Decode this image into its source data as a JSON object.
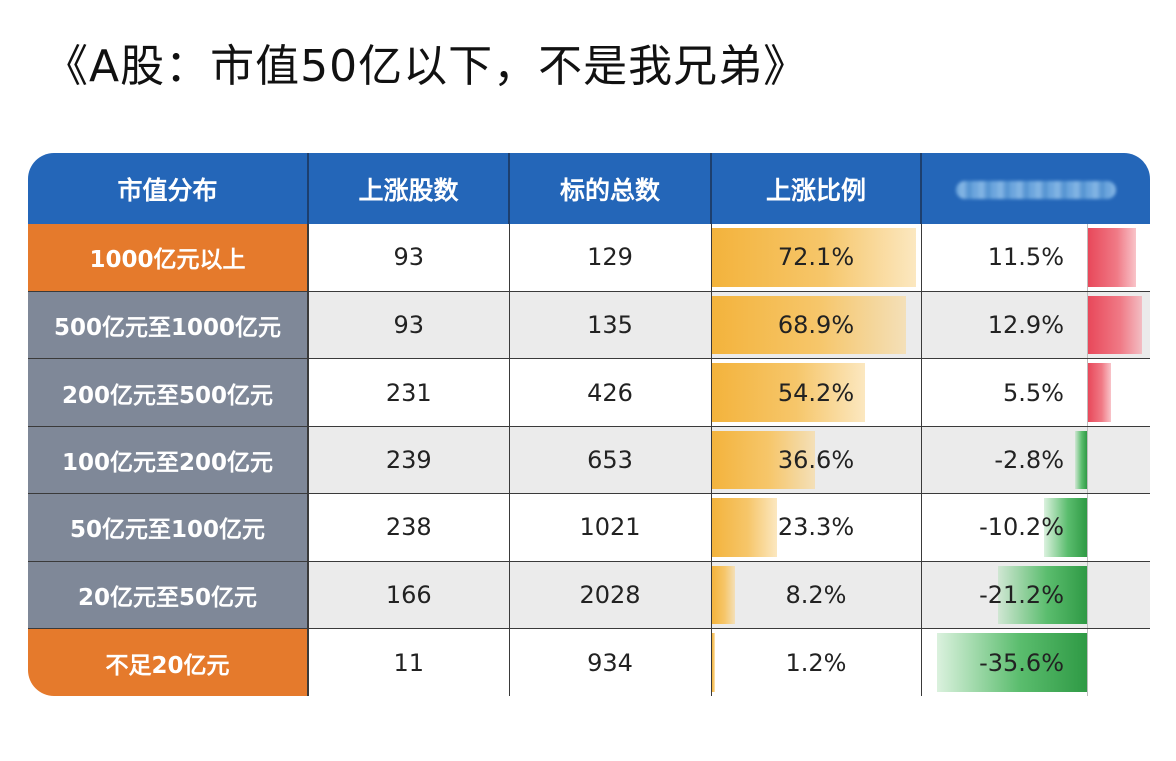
{
  "post": {
    "title": "《A股：市值50亿以下，不是我兄弟》"
  },
  "colors": {
    "header_bg": "#2466b8",
    "band_orange": "#e57a2c",
    "band_gray": "#7f8898",
    "ratio_bar": "#f3b33c",
    "up_bar": "#e8485a",
    "down_bar": "#2f9a45"
  },
  "chart_data": {
    "type": "table",
    "columns": [
      "市值分布",
      "上涨股数",
      "标的总数",
      "上涨比例",
      ""
    ],
    "rows": [
      {
        "band": "1000亿元以上",
        "up": "93",
        "total": "129",
        "ratio": "72.1%",
        "change": "11.5%",
        "band_style": "orange"
      },
      {
        "band": "500亿元至1000亿元",
        "up": "93",
        "total": "135",
        "ratio": "68.9%",
        "change": "12.9%",
        "band_style": "gray"
      },
      {
        "band": "200亿元至500亿元",
        "up": "231",
        "total": "426",
        "ratio": "54.2%",
        "change": "5.5%",
        "band_style": "gray"
      },
      {
        "band": "100亿元至200亿元",
        "up": "239",
        "total": "653",
        "ratio": "36.6%",
        "change": "-2.8%",
        "band_style": "gray"
      },
      {
        "band": "50亿元至100亿元",
        "up": "238",
        "total": "1021",
        "ratio": "23.3%",
        "change": "-10.2%",
        "band_style": "gray"
      },
      {
        "band": "20亿元至50亿元",
        "up": "166",
        "total": "2028",
        "ratio": "8.2%",
        "change": "-21.2%",
        "band_style": "gray"
      },
      {
        "band": "不足20亿元",
        "up": "11",
        "total": "934",
        "ratio": "1.2%",
        "change": "-35.6%",
        "band_style": "orange"
      }
    ],
    "ratio_values": [
      72.1,
      68.9,
      54.2,
      36.6,
      23.3,
      8.2,
      1.2
    ],
    "change_values": [
      11.5,
      12.9,
      5.5,
      -2.8,
      -10.2,
      -21.2,
      -35.6
    ]
  }
}
